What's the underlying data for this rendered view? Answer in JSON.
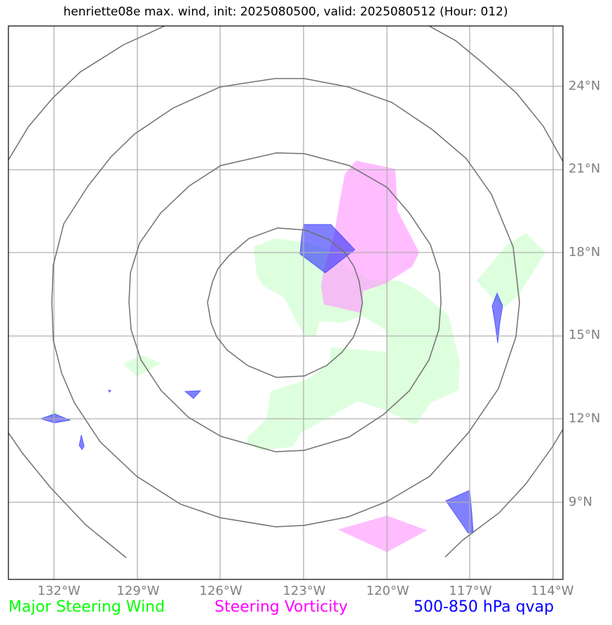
{
  "title": "henriette08e max. wind, init: 2025080500, valid: 2025080512 (Hour: 012)",
  "lat_labels": [
    "24°N",
    "21°N",
    "18°N",
    "15°N",
    "12°N",
    "9°N"
  ],
  "lon_labels": [
    "132°W",
    "129°W",
    "126°W",
    "123°W",
    "120°W",
    "117°W",
    "114°W"
  ],
  "legend": [
    {
      "label": "Major Steering Wind",
      "color": "#00ff00"
    },
    {
      "label": "Steering Vorticity",
      "color": "#ff00ff"
    },
    {
      "label": "500-850 hPa qvap",
      "color": "#0000ff"
    }
  ],
  "colors": {
    "wind_fill": "#ccffcc",
    "vorticity_fill": "#ff99ff",
    "qvap_fill": "#3333ff",
    "rings": "#707070",
    "grid": "#b0b0b0"
  }
}
